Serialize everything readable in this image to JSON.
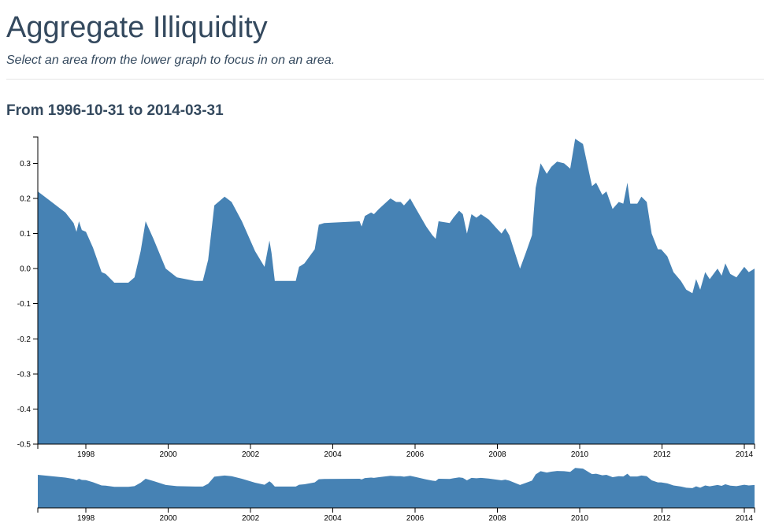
{
  "header": {
    "title": "Aggregate Illiquidity",
    "subtitle": "Select an area from the lower graph to focus in on an area."
  },
  "chart_data": {
    "type": "area",
    "title": "From 1996-10-31 to 2014-03-31",
    "color": "#4682b4",
    "x": [
      1996.83,
      1997.5,
      1997.7,
      1997.77,
      1997.83,
      1997.9,
      1998.0,
      1998.17,
      1998.38,
      1998.48,
      1998.69,
      1999.03,
      1999.18,
      1999.33,
      1999.45,
      1999.64,
      1999.94,
      2000.21,
      2000.65,
      2000.84,
      2000.97,
      2001.12,
      2001.37,
      2001.54,
      2001.79,
      2002.11,
      2002.34,
      2002.46,
      2002.51,
      2002.59,
      2002.84,
      2003.1,
      2003.18,
      2003.31,
      2003.56,
      2003.66,
      2003.79,
      2004.65,
      2004.7,
      2004.78,
      2004.93,
      2005.0,
      2005.12,
      2005.4,
      2005.54,
      2005.65,
      2005.73,
      2005.88,
      2006.0,
      2006.27,
      2006.42,
      2006.5,
      2006.57,
      2006.84,
      2006.93,
      2007.07,
      2007.16,
      2007.26,
      2007.37,
      2007.49,
      2007.6,
      2007.79,
      2007.98,
      2008.1,
      2008.19,
      2008.29,
      2008.55,
      2008.69,
      2008.84,
      2008.93,
      2009.05,
      2009.2,
      2009.31,
      2009.45,
      2009.62,
      2009.77,
      2009.89,
      2010.08,
      2010.3,
      2010.4,
      2010.55,
      2010.65,
      2010.8,
      2010.95,
      2011.06,
      2011.16,
      2011.23,
      2011.4,
      2011.5,
      2011.63,
      2011.75,
      2011.9,
      2011.98,
      2012.13,
      2012.28,
      2012.46,
      2012.59,
      2012.74,
      2012.83,
      2012.93,
      2013.05,
      2013.16,
      2013.35,
      2013.45,
      2013.54,
      2013.66,
      2013.81,
      2014.0,
      2014.11,
      2014.25
    ],
    "values": [
      0.22,
      0.16,
      0.13,
      0.105,
      0.135,
      0.11,
      0.105,
      0.06,
      -0.01,
      -0.015,
      -0.04,
      -0.04,
      -0.025,
      0.05,
      0.135,
      0.085,
      0.0,
      -0.025,
      -0.035,
      -0.035,
      0.025,
      0.18,
      0.205,
      0.19,
      0.135,
      0.05,
      0.005,
      0.08,
      0.045,
      -0.035,
      -0.035,
      -0.035,
      0.005,
      0.015,
      0.055,
      0.125,
      0.13,
      0.135,
      0.12,
      0.15,
      0.16,
      0.155,
      0.17,
      0.2,
      0.19,
      0.19,
      0.18,
      0.2,
      0.175,
      0.12,
      0.095,
      0.085,
      0.135,
      0.13,
      0.145,
      0.165,
      0.155,
      0.1,
      0.155,
      0.145,
      0.155,
      0.14,
      0.115,
      0.1,
      0.115,
      0.095,
      0.0,
      0.045,
      0.095,
      0.23,
      0.3,
      0.27,
      0.29,
      0.305,
      0.3,
      0.285,
      0.37,
      0.355,
      0.235,
      0.245,
      0.21,
      0.22,
      0.17,
      0.19,
      0.185,
      0.245,
      0.185,
      0.185,
      0.205,
      0.19,
      0.1,
      0.055,
      0.055,
      0.035,
      -0.01,
      -0.035,
      -0.06,
      -0.07,
      -0.03,
      -0.06,
      -0.01,
      -0.03,
      0.0,
      -0.02,
      0.015,
      -0.015,
      -0.025,
      0.005,
      -0.01,
      0.0
    ],
    "xlim": [
      1996.83,
      2014.25
    ],
    "xticks": [
      1998,
      2000,
      2002,
      2004,
      2006,
      2008,
      2010,
      2012,
      2014
    ],
    "ylim": [
      -0.5,
      0.375
    ],
    "yticks": [
      0.3,
      0.2,
      0.1,
      {
        "value": 0,
        "label": "0.0"
      },
      -0.1,
      -0.2,
      -0.3,
      -0.4,
      -0.5
    ]
  }
}
